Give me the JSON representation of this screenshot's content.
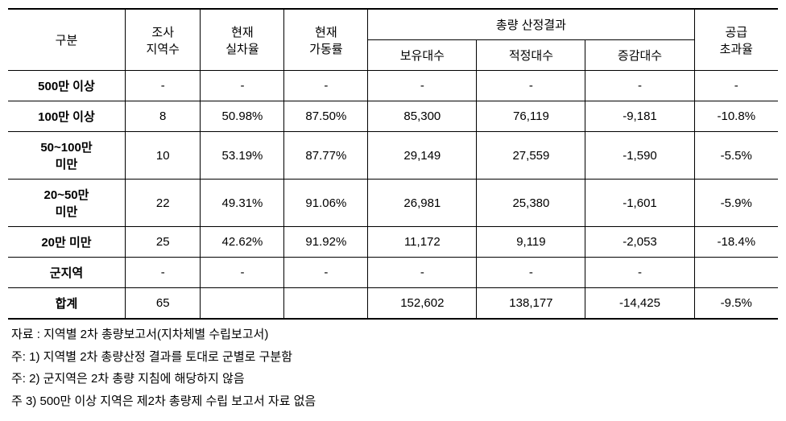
{
  "table": {
    "headers": {
      "category": "구분",
      "survey_regions": "조사\n지역수",
      "current_occupancy": "현재\n실차율",
      "current_operation": "현재\n가동률",
      "total_result": "총량 산정결과",
      "owned_count": "보유대수",
      "proper_count": "적정대수",
      "change_count": "증감대수",
      "supply_excess": "공급\n초과율"
    },
    "rows": [
      {
        "category": "500만 이상",
        "regions": "-",
        "occupancy": "-",
        "operation": "-",
        "owned": "-",
        "proper": "-",
        "change": "-",
        "supply": "-"
      },
      {
        "category": "100만 이상",
        "regions": "8",
        "occupancy": "50.98%",
        "operation": "87.50%",
        "owned": "85,300",
        "proper": "76,119",
        "change": "-9,181",
        "supply": "-10.8%"
      },
      {
        "category": "50~100만\n미만",
        "regions": "10",
        "occupancy": "53.19%",
        "operation": "87.77%",
        "owned": "29,149",
        "proper": "27,559",
        "change": "-1,590",
        "supply": "-5.5%"
      },
      {
        "category": "20~50만\n미만",
        "regions": "22",
        "occupancy": "49.31%",
        "operation": "91.06%",
        "owned": "26,981",
        "proper": "25,380",
        "change": "-1,601",
        "supply": "-5.9%"
      },
      {
        "category": "20만 미만",
        "regions": "25",
        "occupancy": "42.62%",
        "operation": "91.92%",
        "owned": "11,172",
        "proper": "9,119",
        "change": "-2,053",
        "supply": "-18.4%"
      },
      {
        "category": "군지역",
        "regions": "-",
        "occupancy": "-",
        "operation": "-",
        "owned": "-",
        "proper": "-",
        "change": "-",
        "supply": ""
      },
      {
        "category": "합계",
        "regions": "65",
        "occupancy": "",
        "operation": "",
        "owned": "152,602",
        "proper": "138,177",
        "change": "-14,425",
        "supply": "-9.5%"
      }
    ]
  },
  "footnotes": [
    "자료 : 지역별 2차 총량보고서(지차체별 수립보고서)",
    "주: 1) 지역별 2차 총량산정 결과를 토대로 군별로 구분함",
    "주: 2) 군지역은 2차 총량 지침에 해당하지 않음",
    "주 3) 500만 이상 지역은 제2차 총량제 수립 보고서 자료 없음"
  ]
}
